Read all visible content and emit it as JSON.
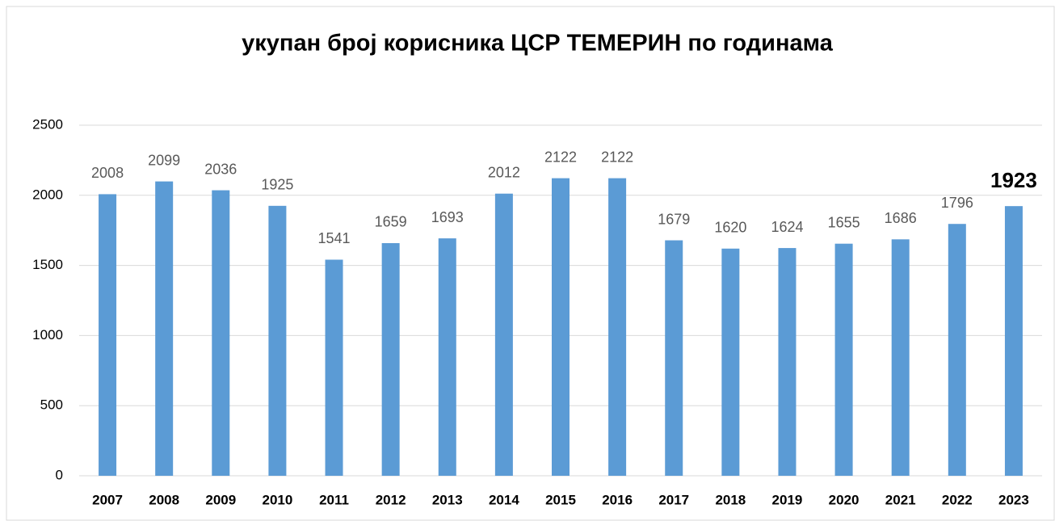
{
  "chart_data": {
    "type": "bar",
    "title": "укупан број корисника ЦСР ТЕМЕРИН по годинама",
    "categories": [
      "2007",
      "2008",
      "2009",
      "2010",
      "2011",
      "2012",
      "2013",
      "2014",
      "2015",
      "2016",
      "2017",
      "2018",
      "2019",
      "2020",
      "2021",
      "2022",
      "2023"
    ],
    "values": [
      2008,
      2099,
      2036,
      1925,
      1541,
      1659,
      1693,
      2012,
      2122,
      2122,
      1679,
      1620,
      1624,
      1655,
      1686,
      1796,
      1923
    ],
    "color": "#5b9bd5",
    "ylim": [
      0,
      2500
    ],
    "yticks": [
      0,
      500,
      1000,
      1500,
      2000,
      2500
    ],
    "grid": true
  }
}
